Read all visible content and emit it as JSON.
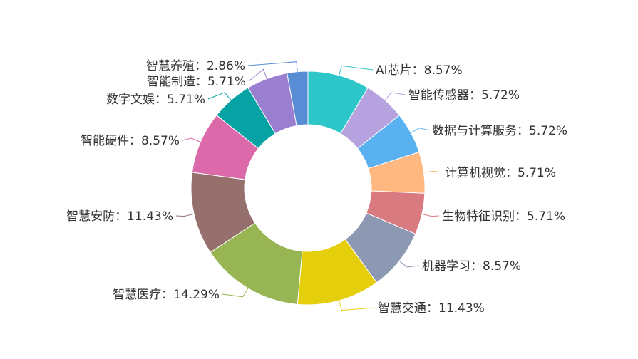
{
  "chart_data": {
    "type": "pie",
    "donut": true,
    "title": "",
    "legend": "none",
    "categories": [
      "AI芯片",
      "智能传感器",
      "数据与计算服务",
      "计算机视觉",
      "生物特征识别",
      "机器学习",
      "智慧交通",
      "智慧医疗",
      "智慧安防",
      "智能硬件",
      "数字文娱",
      "智能制造",
      "智慧养殖"
    ],
    "values": [
      8.57,
      5.72,
      5.72,
      5.71,
      5.71,
      8.57,
      11.43,
      14.29,
      11.43,
      8.57,
      5.71,
      5.71,
      2.86
    ],
    "unit": "%",
    "labels": [
      "AI芯片：8.57%",
      "智能传感器：5.72%",
      "数据与计算服务：5.72%",
      "计算机视觉：5.71%",
      "生物特征识别：5.71%",
      "机器学习：8.57%",
      "智慧交通：11.43%",
      "智慧医疗：14.29%",
      "智慧安防：11.43%",
      "智能硬件：8.57%",
      "数字文娱：5.71%",
      "智能制造：5.71%",
      "智慧养殖：2.86%"
    ],
    "colors": [
      "#2ec7c9",
      "#b6a2de",
      "#5ab1ef",
      "#ffb980",
      "#d87a80",
      "#8d98b3",
      "#e5cf0d",
      "#97b552",
      "#95706d",
      "#dc69aa",
      "#07a2a4",
      "#9a7fd1",
      "#588dd5"
    ]
  }
}
